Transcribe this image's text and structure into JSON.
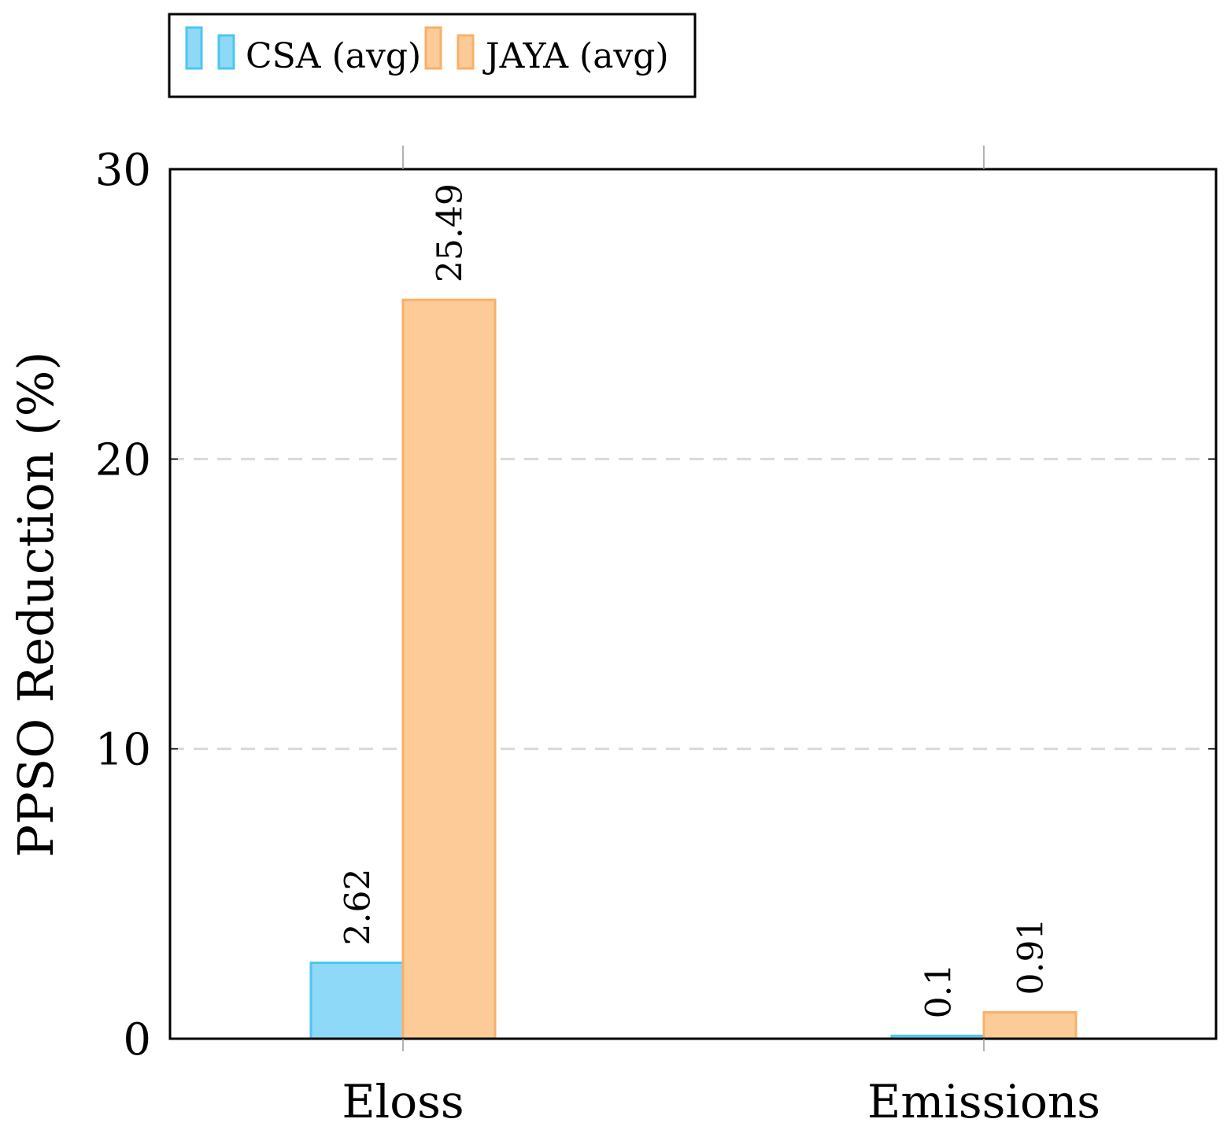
{
  "chart_data": {
    "type": "bar",
    "title": "",
    "xlabel": "",
    "ylabel": "PPSO Reduction (%)",
    "categories": [
      "Eloss",
      "Emissions"
    ],
    "series": [
      {
        "name": "CSA (avg)",
        "values": [
          2.62,
          0.1
        ],
        "labels": [
          "2.62",
          "0.1"
        ],
        "fill": "#8ed8f8",
        "stroke": "#4cc6f0"
      },
      {
        "name": "JAYA (avg)",
        "values": [
          25.49,
          0.91
        ],
        "labels": [
          "25.49",
          "0.91"
        ],
        "fill": "#fdcb98",
        "stroke": "#f7b067"
      }
    ],
    "ylim": [
      0,
      30
    ],
    "yticks": [
      0,
      10,
      20,
      30
    ],
    "ytick_labels": [
      "0",
      "10",
      "20",
      "30"
    ],
    "grid": "horizontal-dashed",
    "grid_color": "#d9d9d9",
    "legend_position": "top-left-outside"
  }
}
